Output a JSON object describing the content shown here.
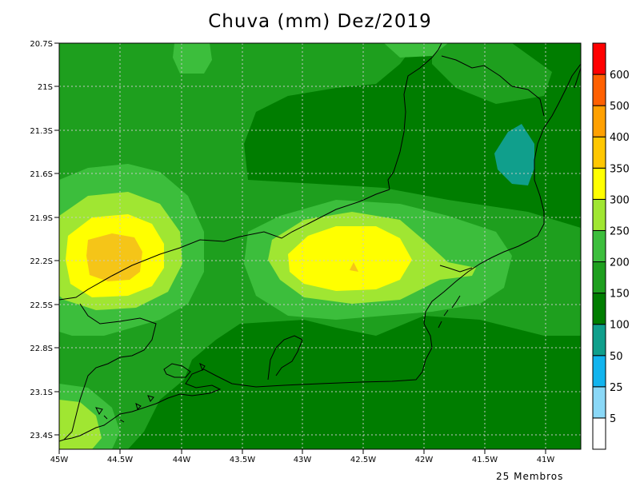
{
  "title": "Chuva (mm) Dez/2019",
  "footer": "25 Membros",
  "chart_data": {
    "type": "heatmap",
    "title": "Chuva (mm) Dez/2019",
    "x_ticks": [
      "45W",
      "44.5W",
      "44W",
      "43.5W",
      "43W",
      "42.5W",
      "42W",
      "41.5W",
      "41W"
    ],
    "y_ticks": [
      "20.7S",
      "21S",
      "21.3S",
      "21.6S",
      "21.9S",
      "22.2S",
      "22.5S",
      "22.8S",
      "23.1S",
      "23.4S"
    ],
    "xlim": [
      -45,
      -40.7
    ],
    "ylim": [
      -23.5,
      -20.7
    ],
    "grid": true,
    "colorbar": {
      "levels": [
        "5",
        "25",
        "50",
        "100",
        "150",
        "200",
        "250",
        "300",
        "350",
        "400",
        "500",
        "600"
      ],
      "colors": [
        "#ffffff",
        "#8ad8f7",
        "#12b4ee",
        "#109f8c",
        "#007d00",
        "#1e9f1e",
        "#3cbe3c",
        "#a0e632",
        "#ffff00",
        "#ffc700",
        "#ffa000",
        "#ff6000",
        "#ff0000"
      ]
    }
  }
}
